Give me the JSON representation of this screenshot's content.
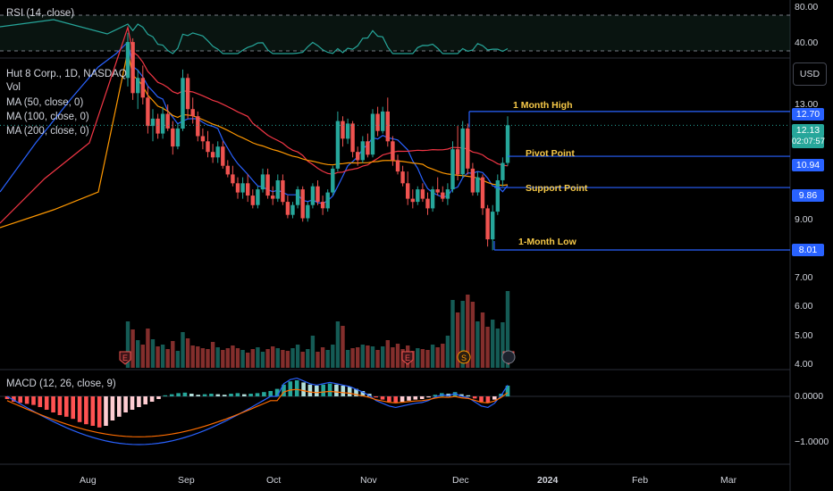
{
  "colors": {
    "up": "#26a69a",
    "down": "#ef5350",
    "ma50": "#2962ff",
    "ma100": "#f23645",
    "ma200": "#ff9800",
    "rsi": "#26a69a",
    "level": "#2962ff",
    "annotation": "#f7c948",
    "vol_up": "#26a69a",
    "vol_down": "#ef5350"
  },
  "labels": {
    "rsi": "RSI (14, close)",
    "symbol": "Hut 8 Corp., 1D, NASDAQ",
    "vol": "Vol",
    "ma50": "MA (50, close, 0)",
    "ma100": "MA (100, close, 0)",
    "ma200": "MA (200, close, 0)",
    "macd": "MACD (12, 26, close, 9)",
    "currency": "USD"
  },
  "annotations": {
    "month_high": "1 Month High",
    "pivot": "Pivot Point",
    "support": "Support Point",
    "month_low": "1-Month Low"
  },
  "price_tags": {
    "month_high": "12.70",
    "last": "12.13",
    "countdown": "02:07:57",
    "pivot": "10.94",
    "support": "9.86",
    "month_low": "8.01"
  },
  "event_icons": [
    "E",
    "E",
    "S",
    "E"
  ],
  "chart_data": {
    "type": "candlestick",
    "x_ticks": [
      "Aug",
      "Sep",
      "Oct",
      "Nov",
      "Dec",
      "2024",
      "Feb",
      "Mar"
    ],
    "price_ticks": [
      "13.00",
      "9.00",
      "7.00",
      "6.00",
      "5.00",
      "4.00"
    ],
    "rsi_ticks": [
      "80.00",
      "40.00"
    ],
    "macd_ticks": [
      "0.0000",
      "−1.0000"
    ],
    "y_scale": "log",
    "levels": {
      "month_high": 12.7,
      "pivot": 10.94,
      "support": 9.86,
      "month_low": 8.01
    },
    "last_price": 12.13,
    "candles": [
      [
        14.2,
        16.5,
        13.8,
        16.0
      ],
      [
        16.0,
        16.2,
        13.2,
        13.5
      ],
      [
        13.5,
        14.6,
        12.8,
        14.2
      ],
      [
        14.2,
        14.8,
        13.0,
        13.3
      ],
      [
        13.3,
        13.8,
        11.8,
        12.1
      ],
      [
        12.1,
        12.8,
        11.5,
        12.4
      ],
      [
        12.4,
        12.6,
        11.6,
        11.8
      ],
      [
        11.8,
        12.9,
        11.6,
        12.6
      ],
      [
        12.6,
        13.0,
        11.9,
        12.0
      ],
      [
        12.0,
        12.3,
        11.0,
        11.3
      ],
      [
        11.3,
        12.2,
        11.2,
        12.0
      ],
      [
        12.0,
        14.6,
        11.9,
        14.2
      ],
      [
        14.2,
        14.4,
        12.4,
        12.8
      ],
      [
        12.8,
        13.3,
        12.2,
        12.5
      ],
      [
        12.5,
        12.7,
        11.5,
        11.7
      ],
      [
        11.7,
        12.0,
        11.2,
        11.5
      ],
      [
        11.5,
        11.9,
        10.9,
        11.1
      ],
      [
        11.1,
        11.4,
        10.7,
        10.9
      ],
      [
        10.9,
        11.5,
        10.7,
        11.3
      ],
      [
        11.3,
        11.5,
        10.5,
        10.6
      ],
      [
        10.6,
        10.8,
        10.2,
        10.3
      ],
      [
        10.3,
        10.6,
        9.9,
        10.0
      ],
      [
        10.0,
        10.2,
        9.5,
        9.7
      ],
      [
        9.7,
        10.2,
        9.5,
        10.0
      ],
      [
        10.0,
        10.3,
        9.4,
        9.6
      ],
      [
        9.6,
        9.8,
        9.2,
        9.3
      ],
      [
        9.3,
        9.9,
        9.2,
        9.8
      ],
      [
        9.8,
        10.5,
        9.7,
        10.3
      ],
      [
        10.3,
        10.5,
        9.5,
        9.6
      ],
      [
        9.6,
        9.9,
        9.3,
        9.5
      ],
      [
        9.5,
        10.3,
        9.4,
        10.1
      ],
      [
        10.1,
        10.3,
        9.3,
        9.4
      ],
      [
        9.4,
        9.6,
        8.9,
        9.0
      ],
      [
        9.0,
        9.4,
        8.9,
        9.3
      ],
      [
        9.3,
        9.9,
        9.2,
        9.8
      ],
      [
        9.8,
        9.9,
        8.8,
        8.9
      ],
      [
        8.9,
        9.4,
        8.8,
        9.3
      ],
      [
        9.3,
        10.0,
        9.2,
        9.9
      ],
      [
        9.9,
        10.1,
        9.3,
        9.4
      ],
      [
        9.4,
        9.6,
        9.0,
        9.2
      ],
      [
        9.2,
        9.8,
        9.1,
        9.7
      ],
      [
        9.7,
        10.6,
        9.6,
        10.5
      ],
      [
        10.5,
        12.7,
        10.4,
        12.3
      ],
      [
        12.3,
        12.5,
        11.3,
        11.6
      ],
      [
        11.6,
        12.4,
        11.4,
        12.2
      ],
      [
        12.2,
        12.3,
        10.9,
        11.1
      ],
      [
        11.1,
        11.3,
        10.6,
        10.8
      ],
      [
        10.8,
        11.7,
        10.7,
        11.5
      ],
      [
        11.5,
        11.8,
        10.9,
        11.0
      ],
      [
        11.0,
        12.8,
        10.9,
        12.6
      ],
      [
        12.6,
        12.9,
        11.7,
        11.9
      ],
      [
        11.9,
        12.9,
        11.8,
        12.7
      ],
      [
        12.7,
        13.3,
        11.3,
        11.5
      ],
      [
        11.5,
        11.7,
        10.6,
        10.8
      ],
      [
        10.8,
        11.0,
        10.3,
        10.4
      ],
      [
        10.4,
        10.6,
        9.9,
        10.0
      ],
      [
        10.0,
        10.4,
        9.3,
        9.5
      ],
      [
        9.5,
        9.8,
        9.2,
        9.4
      ],
      [
        9.4,
        9.9,
        9.3,
        9.8
      ],
      [
        9.8,
        10.0,
        9.4,
        9.5
      ],
      [
        9.5,
        9.7,
        9.0,
        9.2
      ],
      [
        9.2,
        9.9,
        9.1,
        9.8
      ],
      [
        9.8,
        10.2,
        9.6,
        9.7
      ],
      [
        9.7,
        9.9,
        9.4,
        9.5
      ],
      [
        9.5,
        10.0,
        9.3,
        9.8
      ],
      [
        9.8,
        11.5,
        9.7,
        11.2
      ],
      [
        11.2,
        12.1,
        10.1,
        10.3
      ],
      [
        10.3,
        12.3,
        10.2,
        12.0
      ],
      [
        12.0,
        12.2,
        10.3,
        10.5
      ],
      [
        10.5,
        10.7,
        9.6,
        9.7
      ],
      [
        9.7,
        10.4,
        9.6,
        10.2
      ],
      [
        10.2,
        10.3,
        9.0,
        9.2
      ],
      [
        9.2,
        9.3,
        8.1,
        8.3
      ],
      [
        8.3,
        9.3,
        8.0,
        9.1
      ],
      [
        9.1,
        10.3,
        9.0,
        10.1
      ],
      [
        10.1,
        10.9,
        9.9,
        10.7
      ],
      [
        10.7,
        12.5,
        10.6,
        12.13
      ]
    ],
    "volume": [
      5.2,
      4.3,
      3.1,
      2.6,
      4.4,
      3.2,
      2.4,
      2.6,
      2.1,
      3.0,
      1.9,
      4.0,
      3.3,
      2.5,
      2.4,
      2.2,
      2.1,
      2.9,
      2.3,
      2.0,
      2.2,
      2.5,
      2.2,
      2.0,
      1.7,
      2.1,
      2.3,
      1.8,
      2.1,
      2.4,
      2.2,
      2.0,
      1.9,
      2.2,
      2.6,
      1.8,
      2.1,
      3.6,
      1.8,
      2.3,
      2.0,
      2.6,
      5.2,
      4.7,
      2.0,
      2.2,
      2.3,
      2.6,
      2.5,
      2.4,
      2.0,
      2.4,
      3.1,
      2.3,
      2.7,
      2.1,
      2.5,
      1.9,
      2.2,
      2.1,
      2.0,
      2.6,
      2.3,
      2.7,
      3.6,
      7.6,
      6.2,
      7.5,
      8.2,
      7.4,
      5.2,
      6.2,
      4.6,
      5.4,
      4.4,
      5.1,
      8.6
    ],
    "macd_hist": [
      -0.05,
      -0.1,
      -0.12,
      -0.14,
      -0.16,
      -0.2,
      -0.25,
      -0.3,
      -0.35,
      -0.38,
      -0.42,
      -0.48,
      -0.52,
      -0.55,
      -0.58,
      -0.55,
      -0.45,
      -0.38,
      -0.3,
      -0.25,
      -0.2,
      -0.15,
      -0.1,
      -0.05,
      0.02,
      0.04,
      0.06,
      0.07,
      0.05,
      0.03,
      0.04,
      0.05,
      0.04,
      0.03,
      0.05,
      0.06,
      0.04,
      0.05,
      0.06,
      0.08,
      0.1,
      0.14,
      0.22,
      0.28,
      0.3,
      0.26,
      0.22,
      0.2,
      0.22,
      0.24,
      0.22,
      0.2,
      0.18,
      0.14,
      0.1,
      0.05,
      -0.02,
      -0.06,
      -0.1,
      -0.12,
      -0.1,
      -0.08,
      -0.06,
      -0.05,
      -0.02,
      0.03,
      0.06,
      0.05,
      0.08,
      0.04,
      0.02,
      -0.04,
      -0.1,
      -0.12,
      -0.06,
      0.05,
      0.2
    ]
  }
}
